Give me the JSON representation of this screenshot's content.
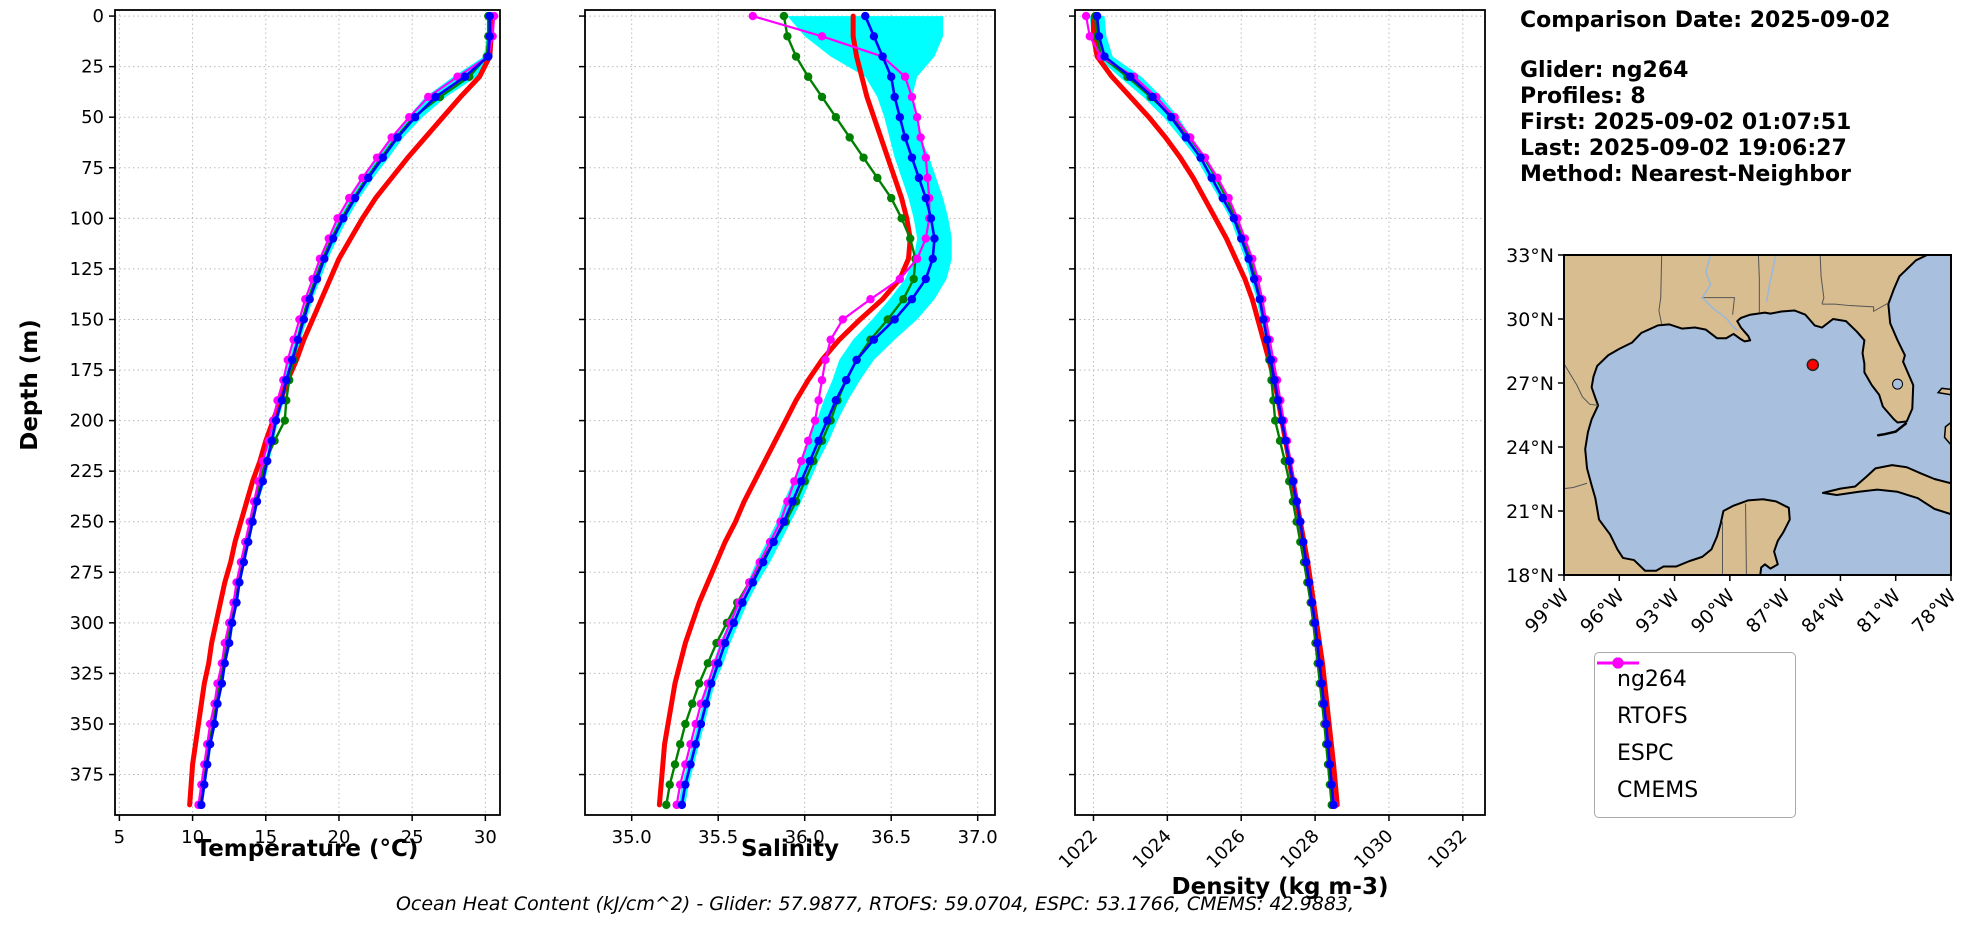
{
  "info": {
    "comparison_date": "Comparison Date: 2025-09-02",
    "glider": "Glider: ng264",
    "profiles": "Profiles: 8",
    "first": "First: 2025-09-02 01:07:51",
    "last": "Last: 2025-09-02 19:06:27",
    "method": "Method: Nearest-Neighbor"
  },
  "footer_text": "Ocean Heat Content (kJ/cm^2) - Glider: 57.9877,  RTOFS: 59.0704,  ESPC: 53.1766,  CMEMS: 42.9883,",
  "depth_axis_label": "Depth (m)",
  "legend": {
    "items": [
      {
        "label": "ng264",
        "color": "#0000ff"
      },
      {
        "label": "RTOFS",
        "color": "#ff0000"
      },
      {
        "label": "ESPC",
        "color": "#008000"
      },
      {
        "label": "CMEMS",
        "color": "#ff00ff"
      }
    ]
  },
  "chart_data": [
    {
      "type": "line",
      "xlabel": "Temperature (°C)",
      "ylabel": "Depth (m)",
      "xlim": [
        4.7,
        31.0
      ],
      "depth_lim": [
        -3,
        395
      ],
      "xticks": [
        5,
        10,
        15,
        20,
        25,
        30
      ],
      "xtick_labels": [
        "5",
        "10",
        "15",
        "20",
        "25",
        "30"
      ],
      "depth_ticks": [
        0,
        25,
        50,
        75,
        100,
        125,
        150,
        175,
        200,
        225,
        250,
        275,
        300,
        325,
        350,
        375
      ],
      "depths": [
        0,
        10,
        20,
        30,
        40,
        50,
        60,
        70,
        80,
        90,
        100,
        110,
        120,
        130,
        140,
        150,
        160,
        170,
        180,
        190,
        200,
        210,
        220,
        230,
        240,
        250,
        260,
        270,
        280,
        290,
        300,
        310,
        320,
        330,
        340,
        350,
        360,
        370,
        380,
        390
      ],
      "series": [
        {
          "name": "ng264",
          "color": "#0000ff",
          "marker": true,
          "width": 2.6,
          "values": [
            30.3,
            30.3,
            30.2,
            28.6,
            26.6,
            25.2,
            24.0,
            23.0,
            22.0,
            21.1,
            20.3,
            19.6,
            19.0,
            18.5,
            18.0,
            17.6,
            17.2,
            16.8,
            16.4,
            16.1,
            15.7,
            15.4,
            15.1,
            14.8,
            14.4,
            14.1,
            13.8,
            13.5,
            13.2,
            13.0,
            12.7,
            12.5,
            12.2,
            12.0,
            11.7,
            11.5,
            11.2,
            11.0,
            10.8,
            10.6
          ]
        },
        {
          "name": "RTOFS",
          "color": "#ff0000",
          "marker": false,
          "width": 5,
          "values": [
            30.4,
            30.4,
            30.3,
            29.6,
            28.3,
            27.1,
            25.9,
            24.7,
            23.6,
            22.5,
            21.6,
            20.8,
            20.0,
            19.4,
            18.8,
            18.2,
            17.6,
            17.1,
            16.5,
            16.0,
            15.5,
            15.0,
            14.6,
            14.1,
            13.7,
            13.3,
            12.9,
            12.6,
            12.2,
            11.9,
            11.6,
            11.3,
            11.1,
            10.8,
            10.6,
            10.4,
            10.2,
            10.0,
            9.9,
            9.8
          ]
        },
        {
          "name": "ESPC",
          "color": "#008000",
          "marker": true,
          "width": 2.4,
          "values": [
            30.2,
            30.2,
            30.1,
            28.9,
            26.9,
            25.1,
            23.9,
            22.9,
            21.9,
            21.0,
            20.2,
            19.5,
            18.9,
            18.4,
            17.9,
            17.5,
            17.2,
            16.9,
            16.6,
            16.4,
            16.3,
            15.6,
            15.0,
            14.6,
            14.3,
            14.0,
            13.7,
            13.4,
            13.1,
            12.8,
            12.6,
            12.3,
            12.1,
            11.8,
            11.6,
            11.4,
            11.1,
            10.9,
            10.7,
            10.5
          ]
        },
        {
          "name": "CMEMS",
          "color": "#ff00ff",
          "marker": true,
          "width": 2.2,
          "values": [
            30.6,
            30.5,
            30.2,
            28.1,
            26.1,
            24.8,
            23.6,
            22.6,
            21.6,
            20.7,
            19.9,
            19.3,
            18.7,
            18.2,
            17.7,
            17.3,
            16.9,
            16.5,
            16.2,
            15.8,
            15.5,
            15.2,
            14.8,
            14.5,
            14.2,
            13.9,
            13.6,
            13.3,
            13.0,
            12.8,
            12.5,
            12.2,
            12.0,
            11.7,
            11.5,
            11.2,
            11.0,
            10.8,
            10.6,
            10.4
          ]
        }
      ],
      "envelope": {
        "series": "ng264",
        "color": "#00ffff",
        "delta": [
          0.2,
          0.2,
          0.3,
          0.8,
          0.7,
          0.5,
          0.4,
          0.4,
          0.35,
          0.3,
          0.3,
          0.3,
          0.25,
          0.25,
          0.2,
          0.2,
          0.2,
          0.2,
          0.2,
          0.15,
          0.15,
          0.15,
          0.15,
          0.15,
          0.1,
          0.1,
          0.1,
          0.1,
          0.1,
          0.1,
          0.1,
          0.1,
          0.1,
          0.1,
          0.1,
          0.1,
          0.1,
          0.1,
          0.1,
          0.1
        ]
      }
    },
    {
      "type": "line",
      "xlabel": "Salinity",
      "ylabel": "Depth (m)",
      "xlim": [
        34.73,
        37.1
      ],
      "depth_lim": [
        -3,
        395
      ],
      "xticks": [
        35.0,
        35.5,
        36.0,
        36.5,
        37.0
      ],
      "xtick_labels": [
        "35.0",
        "35.5",
        "36.0",
        "36.5",
        "37.0"
      ],
      "depth_ticks": [
        0,
        25,
        50,
        75,
        100,
        125,
        150,
        175,
        200,
        225,
        250,
        275,
        300,
        325,
        350,
        375
      ],
      "depths": [
        0,
        10,
        20,
        30,
        40,
        50,
        60,
        70,
        80,
        90,
        100,
        110,
        120,
        130,
        140,
        150,
        160,
        170,
        180,
        190,
        200,
        210,
        220,
        230,
        240,
        250,
        260,
        270,
        280,
        290,
        300,
        310,
        320,
        330,
        340,
        350,
        360,
        370,
        380,
        390
      ],
      "series": [
        {
          "name": "ng264",
          "color": "#0000ff",
          "marker": true,
          "width": 2.6,
          "values": [
            36.35,
            36.4,
            36.45,
            36.5,
            36.52,
            36.55,
            36.58,
            36.62,
            36.66,
            36.7,
            36.73,
            36.75,
            36.74,
            36.7,
            36.62,
            36.52,
            36.4,
            36.3,
            36.24,
            36.18,
            36.13,
            36.08,
            36.03,
            35.98,
            35.93,
            35.88,
            35.82,
            35.76,
            35.7,
            35.64,
            35.59,
            35.54,
            35.5,
            35.46,
            35.43,
            35.4,
            35.37,
            35.34,
            35.31,
            35.29
          ]
        },
        {
          "name": "RTOFS",
          "color": "#ff0000",
          "marker": false,
          "width": 5,
          "values": [
            36.28,
            36.28,
            36.3,
            36.33,
            36.36,
            36.4,
            36.44,
            36.48,
            36.52,
            36.56,
            36.59,
            36.61,
            36.6,
            36.55,
            36.45,
            36.32,
            36.2,
            36.1,
            36.02,
            35.95,
            35.89,
            35.83,
            35.77,
            35.71,
            35.65,
            35.6,
            35.54,
            35.49,
            35.44,
            35.39,
            35.35,
            35.31,
            35.28,
            35.25,
            35.23,
            35.21,
            35.19,
            35.18,
            35.17,
            35.16
          ]
        },
        {
          "name": "ESPC",
          "color": "#008000",
          "marker": true,
          "width": 2.4,
          "values": [
            35.88,
            35.9,
            35.95,
            36.02,
            36.1,
            36.18,
            36.26,
            36.34,
            36.42,
            36.5,
            36.56,
            36.61,
            36.64,
            36.63,
            36.57,
            36.48,
            36.38,
            36.3,
            36.24,
            36.19,
            36.15,
            36.1,
            36.05,
            36.0,
            35.95,
            35.89,
            35.82,
            35.75,
            35.68,
            35.61,
            35.55,
            35.49,
            35.44,
            35.39,
            35.35,
            35.31,
            35.28,
            35.25,
            35.22,
            35.2
          ]
        },
        {
          "name": "CMEMS",
          "color": "#ff00ff",
          "marker": true,
          "width": 2.2,
          "values": [
            35.7,
            36.1,
            36.45,
            36.58,
            36.62,
            36.65,
            36.67,
            36.7,
            36.71,
            36.72,
            36.72,
            36.7,
            36.65,
            36.55,
            36.38,
            36.22,
            36.15,
            36.12,
            36.1,
            36.08,
            36.06,
            36.02,
            35.98,
            35.94,
            35.9,
            35.86,
            35.8,
            35.74,
            35.68,
            35.62,
            35.57,
            35.52,
            35.48,
            35.44,
            35.4,
            35.37,
            35.34,
            35.31,
            35.28,
            35.26
          ]
        }
      ],
      "envelope": {
        "series": "ng264",
        "color": "#00ffff",
        "delta": [
          0.45,
          0.4,
          0.3,
          0.15,
          0.1,
          0.09,
          0.09,
          0.1,
          0.1,
          0.1,
          0.1,
          0.1,
          0.11,
          0.12,
          0.13,
          0.13,
          0.12,
          0.1,
          0.08,
          0.07,
          0.06,
          0.06,
          0.05,
          0.05,
          0.05,
          0.04,
          0.04,
          0.04,
          0.03,
          0.03,
          0.03,
          0.03,
          0.03,
          0.02,
          0.02,
          0.02,
          0.02,
          0.02,
          0.02,
          0.02
        ]
      }
    },
    {
      "type": "line",
      "xlabel": "Density (kg m-3)",
      "ylabel": "Depth (m)",
      "xlim": [
        1021.5,
        1032.6
      ],
      "depth_lim": [
        -3,
        395
      ],
      "xticks": [
        1022,
        1024,
        1026,
        1028,
        1030,
        1032
      ],
      "xtick_labels": [
        "1022",
        "1024",
        "1026",
        "1028",
        "1030",
        "1032"
      ],
      "rotate_xticks": true,
      "depth_ticks": [
        0,
        25,
        50,
        75,
        100,
        125,
        150,
        175,
        200,
        225,
        250,
        275,
        300,
        325,
        350,
        375
      ],
      "depths": [
        0,
        10,
        20,
        30,
        40,
        50,
        60,
        70,
        80,
        90,
        100,
        110,
        120,
        130,
        140,
        150,
        160,
        170,
        180,
        190,
        200,
        210,
        220,
        230,
        240,
        250,
        260,
        270,
        280,
        290,
        300,
        310,
        320,
        330,
        340,
        350,
        360,
        370,
        380,
        390
      ],
      "series": [
        {
          "name": "ng264",
          "color": "#0000ff",
          "marker": true,
          "width": 2.6,
          "values": [
            1022.1,
            1022.15,
            1022.3,
            1023.0,
            1023.6,
            1024.1,
            1024.5,
            1024.9,
            1025.2,
            1025.5,
            1025.8,
            1026.0,
            1026.2,
            1026.35,
            1026.5,
            1026.6,
            1026.7,
            1026.8,
            1026.9,
            1027.0,
            1027.1,
            1027.2,
            1027.3,
            1027.4,
            1027.5,
            1027.6,
            1027.68,
            1027.76,
            1027.84,
            1027.92,
            1028.0,
            1028.06,
            1028.12,
            1028.18,
            1028.24,
            1028.3,
            1028.35,
            1028.4,
            1028.45,
            1028.5
          ]
        },
        {
          "name": "RTOFS",
          "color": "#ff0000",
          "marker": false,
          "width": 5,
          "values": [
            1022.0,
            1022.0,
            1022.1,
            1022.5,
            1023.0,
            1023.5,
            1023.95,
            1024.35,
            1024.7,
            1025.0,
            1025.3,
            1025.6,
            1025.85,
            1026.1,
            1026.3,
            1026.45,
            1026.6,
            1026.75,
            1026.9,
            1027.0,
            1027.1,
            1027.2,
            1027.3,
            1027.4,
            1027.5,
            1027.6,
            1027.7,
            1027.8,
            1027.88,
            1027.96,
            1028.04,
            1028.12,
            1028.2,
            1028.26,
            1028.32,
            1028.38,
            1028.44,
            1028.5,
            1028.55,
            1028.6
          ]
        },
        {
          "name": "ESPC",
          "color": "#008000",
          "marker": true,
          "width": 2.4,
          "values": [
            1022.05,
            1022.08,
            1022.22,
            1022.92,
            1023.55,
            1024.15,
            1024.6,
            1025.0,
            1025.32,
            1025.6,
            1025.85,
            1026.05,
            1026.25,
            1026.4,
            1026.52,
            1026.62,
            1026.7,
            1026.76,
            1026.82,
            1026.87,
            1026.92,
            1027.05,
            1027.18,
            1027.3,
            1027.4,
            1027.5,
            1027.6,
            1027.7,
            1027.79,
            1027.88,
            1027.95,
            1028.01,
            1028.07,
            1028.13,
            1028.19,
            1028.25,
            1028.3,
            1028.35,
            1028.4,
            1028.45
          ]
        },
        {
          "name": "CMEMS",
          "color": "#ff00ff",
          "marker": true,
          "width": 2.2,
          "values": [
            1021.8,
            1021.9,
            1022.2,
            1023.1,
            1023.7,
            1024.2,
            1024.62,
            1025.02,
            1025.36,
            1025.66,
            1025.9,
            1026.1,
            1026.3,
            1026.45,
            1026.57,
            1026.67,
            1026.77,
            1026.87,
            1026.97,
            1027.06,
            1027.15,
            1027.24,
            1027.33,
            1027.42,
            1027.51,
            1027.6,
            1027.68,
            1027.76,
            1027.84,
            1027.92,
            1027.99,
            1028.05,
            1028.11,
            1028.17,
            1028.23,
            1028.29,
            1028.35,
            1028.4,
            1028.46,
            1028.52
          ]
        }
      ],
      "envelope": {
        "series": "ng264",
        "color": "#00ffff",
        "delta": [
          0.2,
          0.2,
          0.22,
          0.3,
          0.25,
          0.2,
          0.15,
          0.12,
          0.12,
          0.1,
          0.1,
          0.1,
          0.1,
          0.1,
          0.08,
          0.08,
          0.08,
          0.07,
          0.07,
          0.06,
          0.06,
          0.06,
          0.05,
          0.05,
          0.05,
          0.05,
          0.04,
          0.04,
          0.04,
          0.04,
          0.04,
          0.03,
          0.03,
          0.03,
          0.03,
          0.03,
          0.03,
          0.03,
          0.03,
          0.03
        ]
      }
    }
  ],
  "map": {
    "extent": {
      "lon_min": -99,
      "lon_max": -78,
      "lat_min": 18,
      "lat_max": 33
    },
    "lon_tick_values": [
      -99,
      -96,
      -93,
      -90,
      -87,
      -84,
      -81,
      -78
    ],
    "lon_tick_labels": [
      "99°W",
      "96°W",
      "93°W",
      "90°W",
      "87°W",
      "84°W",
      "81°W",
      "78°W"
    ],
    "lat_tick_values": [
      33,
      30,
      27,
      24,
      21,
      18
    ],
    "lat_tick_labels": [
      "33°N",
      "30°N",
      "27°N",
      "24°N",
      "21°N",
      "18°N"
    ],
    "marker": {
      "lon": -85.5,
      "lat": 27.85,
      "color": "#ff0000"
    },
    "land_color": "#d8bd90",
    "water_color": "#a8c0dd"
  }
}
